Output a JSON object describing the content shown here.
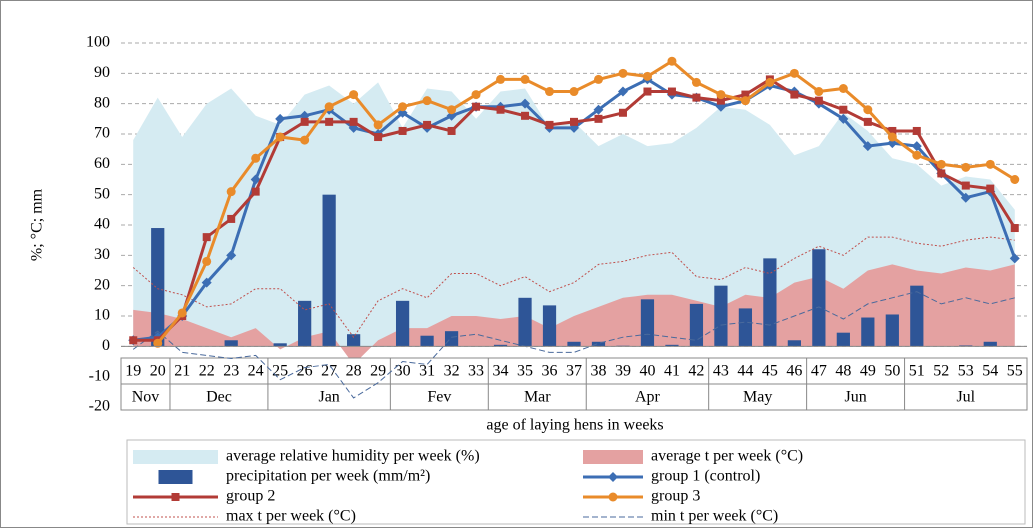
{
  "chart_data": {
    "type": "combo",
    "y_label": "%; °C; mm",
    "x_label": "age of laying hens in weeks",
    "categories": [
      "19",
      "20",
      "21",
      "22",
      "23",
      "24",
      "25",
      "26",
      "27",
      "28",
      "29",
      "30",
      "31",
      "32",
      "33",
      "34",
      "35",
      "36",
      "37",
      "38",
      "39",
      "40",
      "41",
      "42",
      "43",
      "44",
      "45",
      "46",
      "47",
      "48",
      "49",
      "50",
      "51",
      "52",
      "53",
      "54",
      "55"
    ],
    "months": [
      "Nov",
      "Nov",
      "Dec",
      "Dec",
      "Dec",
      "Dec",
      "Jan",
      "Jan",
      "Jan",
      "Jan",
      "Jan",
      "Fev",
      "Fev",
      "Fev",
      "Fev",
      "Mar",
      "Mar",
      "Mar",
      "Mar",
      "Apr",
      "Apr",
      "Apr",
      "Apr",
      "Apr",
      "May",
      "May",
      "May",
      "May",
      "Jun",
      "Jun",
      "Jun",
      "Jun",
      "Jul",
      "Jul",
      "Jul",
      "Jul",
      "Jul"
    ],
    "ylim": [
      -20,
      100
    ],
    "yticks": [
      -20,
      -10,
      0,
      10,
      20,
      30,
      40,
      50,
      60,
      70,
      80,
      90,
      100
    ],
    "grid": true,
    "series": [
      {
        "name": "average relative humidity per week (%)",
        "kind": "area",
        "color": "#d5ebf2",
        "values": [
          68,
          82,
          69,
          80,
          85,
          76,
          73,
          83,
          86,
          80,
          87,
          72,
          85,
          84,
          75,
          84,
          85,
          72,
          74,
          66,
          70,
          66,
          67,
          72,
          79,
          78,
          73,
          63,
          66,
          77,
          71,
          62,
          60,
          53,
          56,
          55,
          45
        ]
      },
      {
        "name": "average t per week (°C)",
        "kind": "area",
        "color": "#e4a1a1",
        "values": [
          12,
          11,
          9,
          6,
          3,
          6,
          -1,
          3,
          5,
          -6,
          2,
          6,
          6,
          10,
          10,
          9,
          10,
          6,
          10,
          13,
          16,
          17,
          17,
          15,
          13,
          17,
          16,
          21,
          23,
          19,
          25,
          27,
          25,
          24,
          26,
          25,
          27
        ]
      },
      {
        "name": "precipitation per week (mm/m²)",
        "kind": "bar",
        "color": "#2e5597",
        "values": [
          0,
          39,
          0,
          0,
          2,
          0,
          1,
          15,
          50,
          4,
          0,
          15,
          3.5,
          5,
          0,
          0.5,
          16,
          13.5,
          1.5,
          1.5,
          0.2,
          15.5,
          0.5,
          14,
          20,
          12.5,
          29,
          2,
          32,
          4.5,
          9.5,
          10.5,
          20,
          0,
          0.3,
          1.5,
          0
        ]
      },
      {
        "name": "group 1 (control)",
        "kind": "line",
        "marker": "diamond",
        "color": "#3c6eb4",
        "values": [
          2,
          3,
          10,
          21,
          30,
          55,
          75,
          76,
          78,
          72,
          70,
          77,
          72,
          76,
          79,
          79,
          80,
          72,
          72,
          78,
          84,
          88,
          83,
          82,
          79,
          81,
          86,
          84,
          80,
          75,
          66,
          67,
          66,
          57,
          49,
          51,
          29
        ]
      },
      {
        "name": "group 2",
        "kind": "line",
        "marker": "square",
        "color": "#b23b36",
        "values": [
          2,
          2,
          10,
          36,
          42,
          51,
          69,
          74,
          74,
          74,
          69,
          71,
          73,
          71,
          79,
          78,
          76,
          73,
          74,
          75,
          77,
          84,
          84,
          82,
          81,
          83,
          88,
          83,
          81,
          78,
          74,
          71,
          71,
          57,
          53,
          52,
          39
        ]
      },
      {
        "name": "group 3",
        "kind": "line",
        "marker": "circle",
        "color": "#e98b2a",
        "values": [
          null,
          1,
          11,
          28,
          51,
          62,
          69,
          68,
          79,
          83,
          73,
          79,
          81,
          78,
          83,
          88,
          88,
          84,
          84,
          88,
          90,
          89,
          94,
          87,
          83,
          81,
          87,
          90,
          84,
          85,
          78,
          69,
          63,
          60,
          59,
          60,
          55
        ]
      },
      {
        "name": "max t per week (°C)",
        "kind": "line",
        "dash": "2,2",
        "color": "#c0504d",
        "values": [
          26,
          19,
          17,
          13,
          14,
          19,
          19,
          12,
          14,
          3,
          15,
          19,
          16,
          24,
          24,
          20,
          23,
          18,
          21,
          27,
          28,
          30,
          31,
          23,
          22,
          26,
          24,
          29,
          33,
          30,
          36,
          36,
          34,
          33,
          35,
          36,
          35
        ]
      },
      {
        "name": "min t per week (°C)",
        "kind": "line",
        "dash": "6,3",
        "color": "#4a6a9c",
        "values": [
          -1,
          5,
          -2,
          -3,
          -4,
          -3,
          -11,
          -7,
          -6,
          -17,
          -12,
          -5,
          -6,
          3,
          4,
          2,
          0,
          -2,
          -2,
          1,
          3,
          4,
          3,
          2,
          7,
          8,
          7,
          10,
          13,
          9,
          14,
          16,
          18,
          14,
          16,
          14,
          16
        ]
      }
    ]
  }
}
